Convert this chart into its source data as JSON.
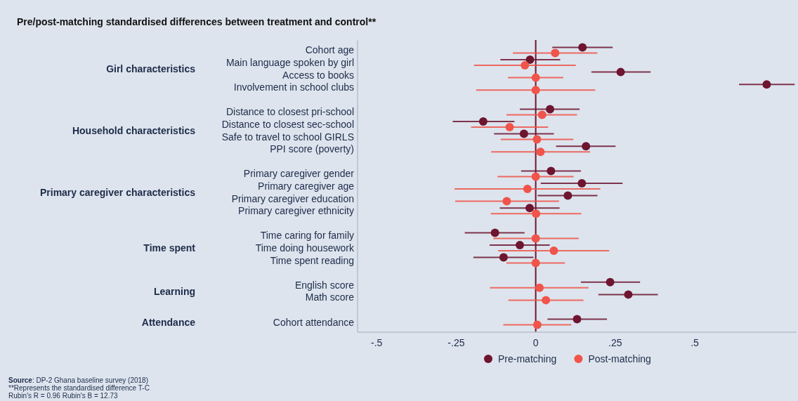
{
  "chart_data": {
    "type": "scatter",
    "orientation": "horizontal",
    "title": "Pre/post-matching standardised differences between treatment and control**",
    "categories": [
      "Cohort age",
      "Main language spoken by girl",
      "Access to books",
      "Involvement in school clubs",
      null,
      "Distance to closest pri-school",
      "Distance to closest sec-school",
      "Safe to travel to school GIRLS",
      "PPI score (poverty)",
      null,
      "Primary caregiver gender",
      "Primary caregiver age",
      "Primary caregiver education",
      "Primary caregiver ethnicity",
      null,
      "Time caring for family",
      "Time doing housework",
      "Time spent reading",
      null,
      "English score",
      "Math score",
      null,
      "Cohort attendance"
    ],
    "series": [
      {
        "name": "Pre-matching",
        "color": "#6e1530",
        "values": [
          0.147,
          -0.018,
          0.267,
          0.726,
          null,
          0.045,
          -0.165,
          -0.037,
          0.158,
          null,
          0.048,
          0.145,
          0.101,
          -0.019,
          null,
          -0.128,
          -0.05,
          -0.101,
          null,
          0.234,
          0.291,
          null,
          0.13
        ],
        "errors": [
          [
            0.052,
            0.242
          ],
          [
            -0.111,
            0.077
          ],
          [
            0.175,
            0.361
          ],
          [
            0.639,
            0.814
          ],
          null,
          [
            -0.05,
            0.138
          ],
          [
            -0.261,
            -0.067
          ],
          [
            -0.131,
            0.057
          ],
          [
            0.064,
            0.251
          ],
          null,
          [
            -0.046,
            0.142
          ],
          [
            0.016,
            0.273
          ],
          [
            0.006,
            0.194
          ],
          [
            -0.113,
            0.075
          ],
          null,
          [
            -0.223,
            -0.035
          ],
          [
            -0.145,
            0.044
          ],
          [
            -0.196,
            -0.007
          ],
          null,
          [
            0.142,
            0.328
          ],
          [
            0.197,
            0.384
          ],
          null,
          [
            0.037,
            0.224
          ]
        ]
      },
      {
        "name": "Post-matching",
        "color": "#f0544a",
        "values": [
          0.061,
          -0.034,
          0,
          0,
          null,
          0.02,
          -0.082,
          0.004,
          0.015,
          null,
          0,
          -0.026,
          -0.091,
          0.001,
          null,
          0,
          0.057,
          0,
          null,
          0.012,
          0.032,
          null,
          0.005
        ],
        "errors": [
          [
            -0.072,
            0.194
          ],
          [
            -0.194,
            0.126
          ],
          [
            -0.087,
            0.087
          ],
          [
            -0.187,
            0.187
          ],
          null,
          [
            -0.092,
            0.13
          ],
          [
            -0.203,
            0.039
          ],
          [
            -0.11,
            0.118
          ],
          [
            -0.14,
            0.171
          ],
          null,
          [
            -0.12,
            0.119
          ],
          [
            -0.255,
            0.203
          ],
          [
            -0.253,
            0.073
          ],
          [
            -0.141,
            0.143
          ],
          null,
          [
            -0.133,
            0.135
          ],
          [
            -0.118,
            0.231
          ],
          [
            -0.092,
            0.092
          ],
          null,
          [
            -0.144,
            0.166
          ],
          [
            -0.086,
            0.15
          ],
          null,
          [
            -0.102,
            0.112
          ]
        ]
      }
    ],
    "xlim": [
      -0.56,
      0.82
    ],
    "xticks": [
      {
        "value": -0.5,
        "label": "-.5"
      },
      {
        "value": -0.25,
        "label": "-.25"
      },
      0,
      {
        "value": 0.25,
        "label": ".25"
      },
      {
        "value": 0.5,
        "label": ".5"
      }
    ],
    "ref_lines": [
      {
        "axis": "x",
        "value": 0,
        "color": "#6e1530"
      }
    ],
    "marker": "circle",
    "grid": false,
    "legend": "bottom",
    "annotations": [
      "Girl characteristics",
      "Household characteristics",
      "Primary caregiver characteristics",
      "Time spent",
      "Learning",
      "Attendance",
      "Source: DP-2 Ghana baseline survey (2018)",
      "**Represents the standardised difference T-C",
      "Rubin's R = 0.96 Rubin's B = 12.73"
    ]
  }
}
